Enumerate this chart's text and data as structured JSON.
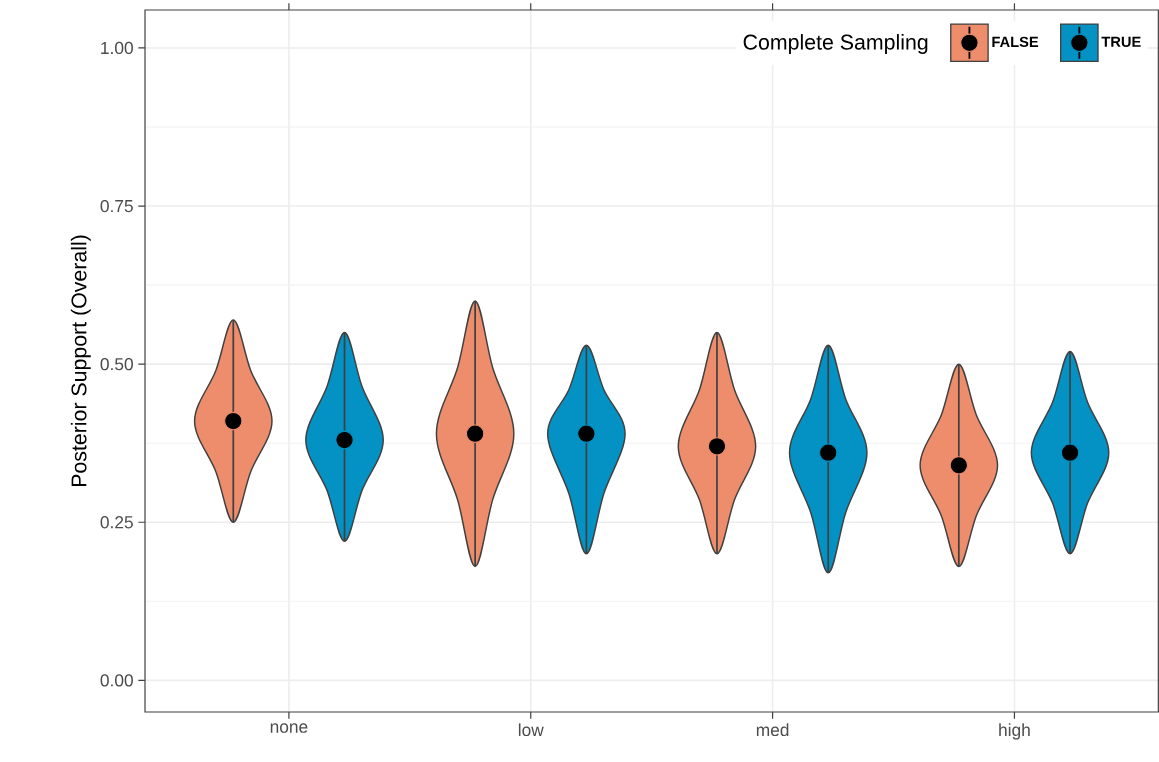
{
  "chart_data": {
    "type": "scatter",
    "ylabel": "Posterior Support (Overall)",
    "legend_title": "Complete Sampling",
    "categories": [
      "none",
      "low",
      "med",
      "high"
    ],
    "series": [
      {
        "name": "FALSE",
        "color": "#ee8d6c",
        "values": [
          0.41,
          0.39,
          0.37,
          0.34
        ],
        "errors": [
          [
            0.25,
            0.57
          ],
          [
            0.18,
            0.6
          ],
          [
            0.2,
            0.55
          ],
          [
            0.18,
            0.5
          ]
        ]
      },
      {
        "name": "TRUE",
        "color": "#0392c3",
        "values": [
          0.38,
          0.39,
          0.36,
          0.36
        ],
        "errors": [
          [
            0.22,
            0.55
          ],
          [
            0.2,
            0.53
          ],
          [
            0.17,
            0.53
          ],
          [
            0.2,
            0.52
          ]
        ]
      }
    ],
    "ylim": [
      -0.05,
      1.06
    ],
    "yticks": [
      {
        "value": 0,
        "label": "0.00"
      },
      {
        "value": 0.25,
        "label": "0.25"
      },
      {
        "value": 0.5,
        "label": "0.50"
      },
      {
        "value": 0.75,
        "label": "0.75"
      },
      {
        "value": 1,
        "label": "1.00"
      }
    ],
    "grid": true,
    "legend": "top right",
    "marker": "circle"
  }
}
